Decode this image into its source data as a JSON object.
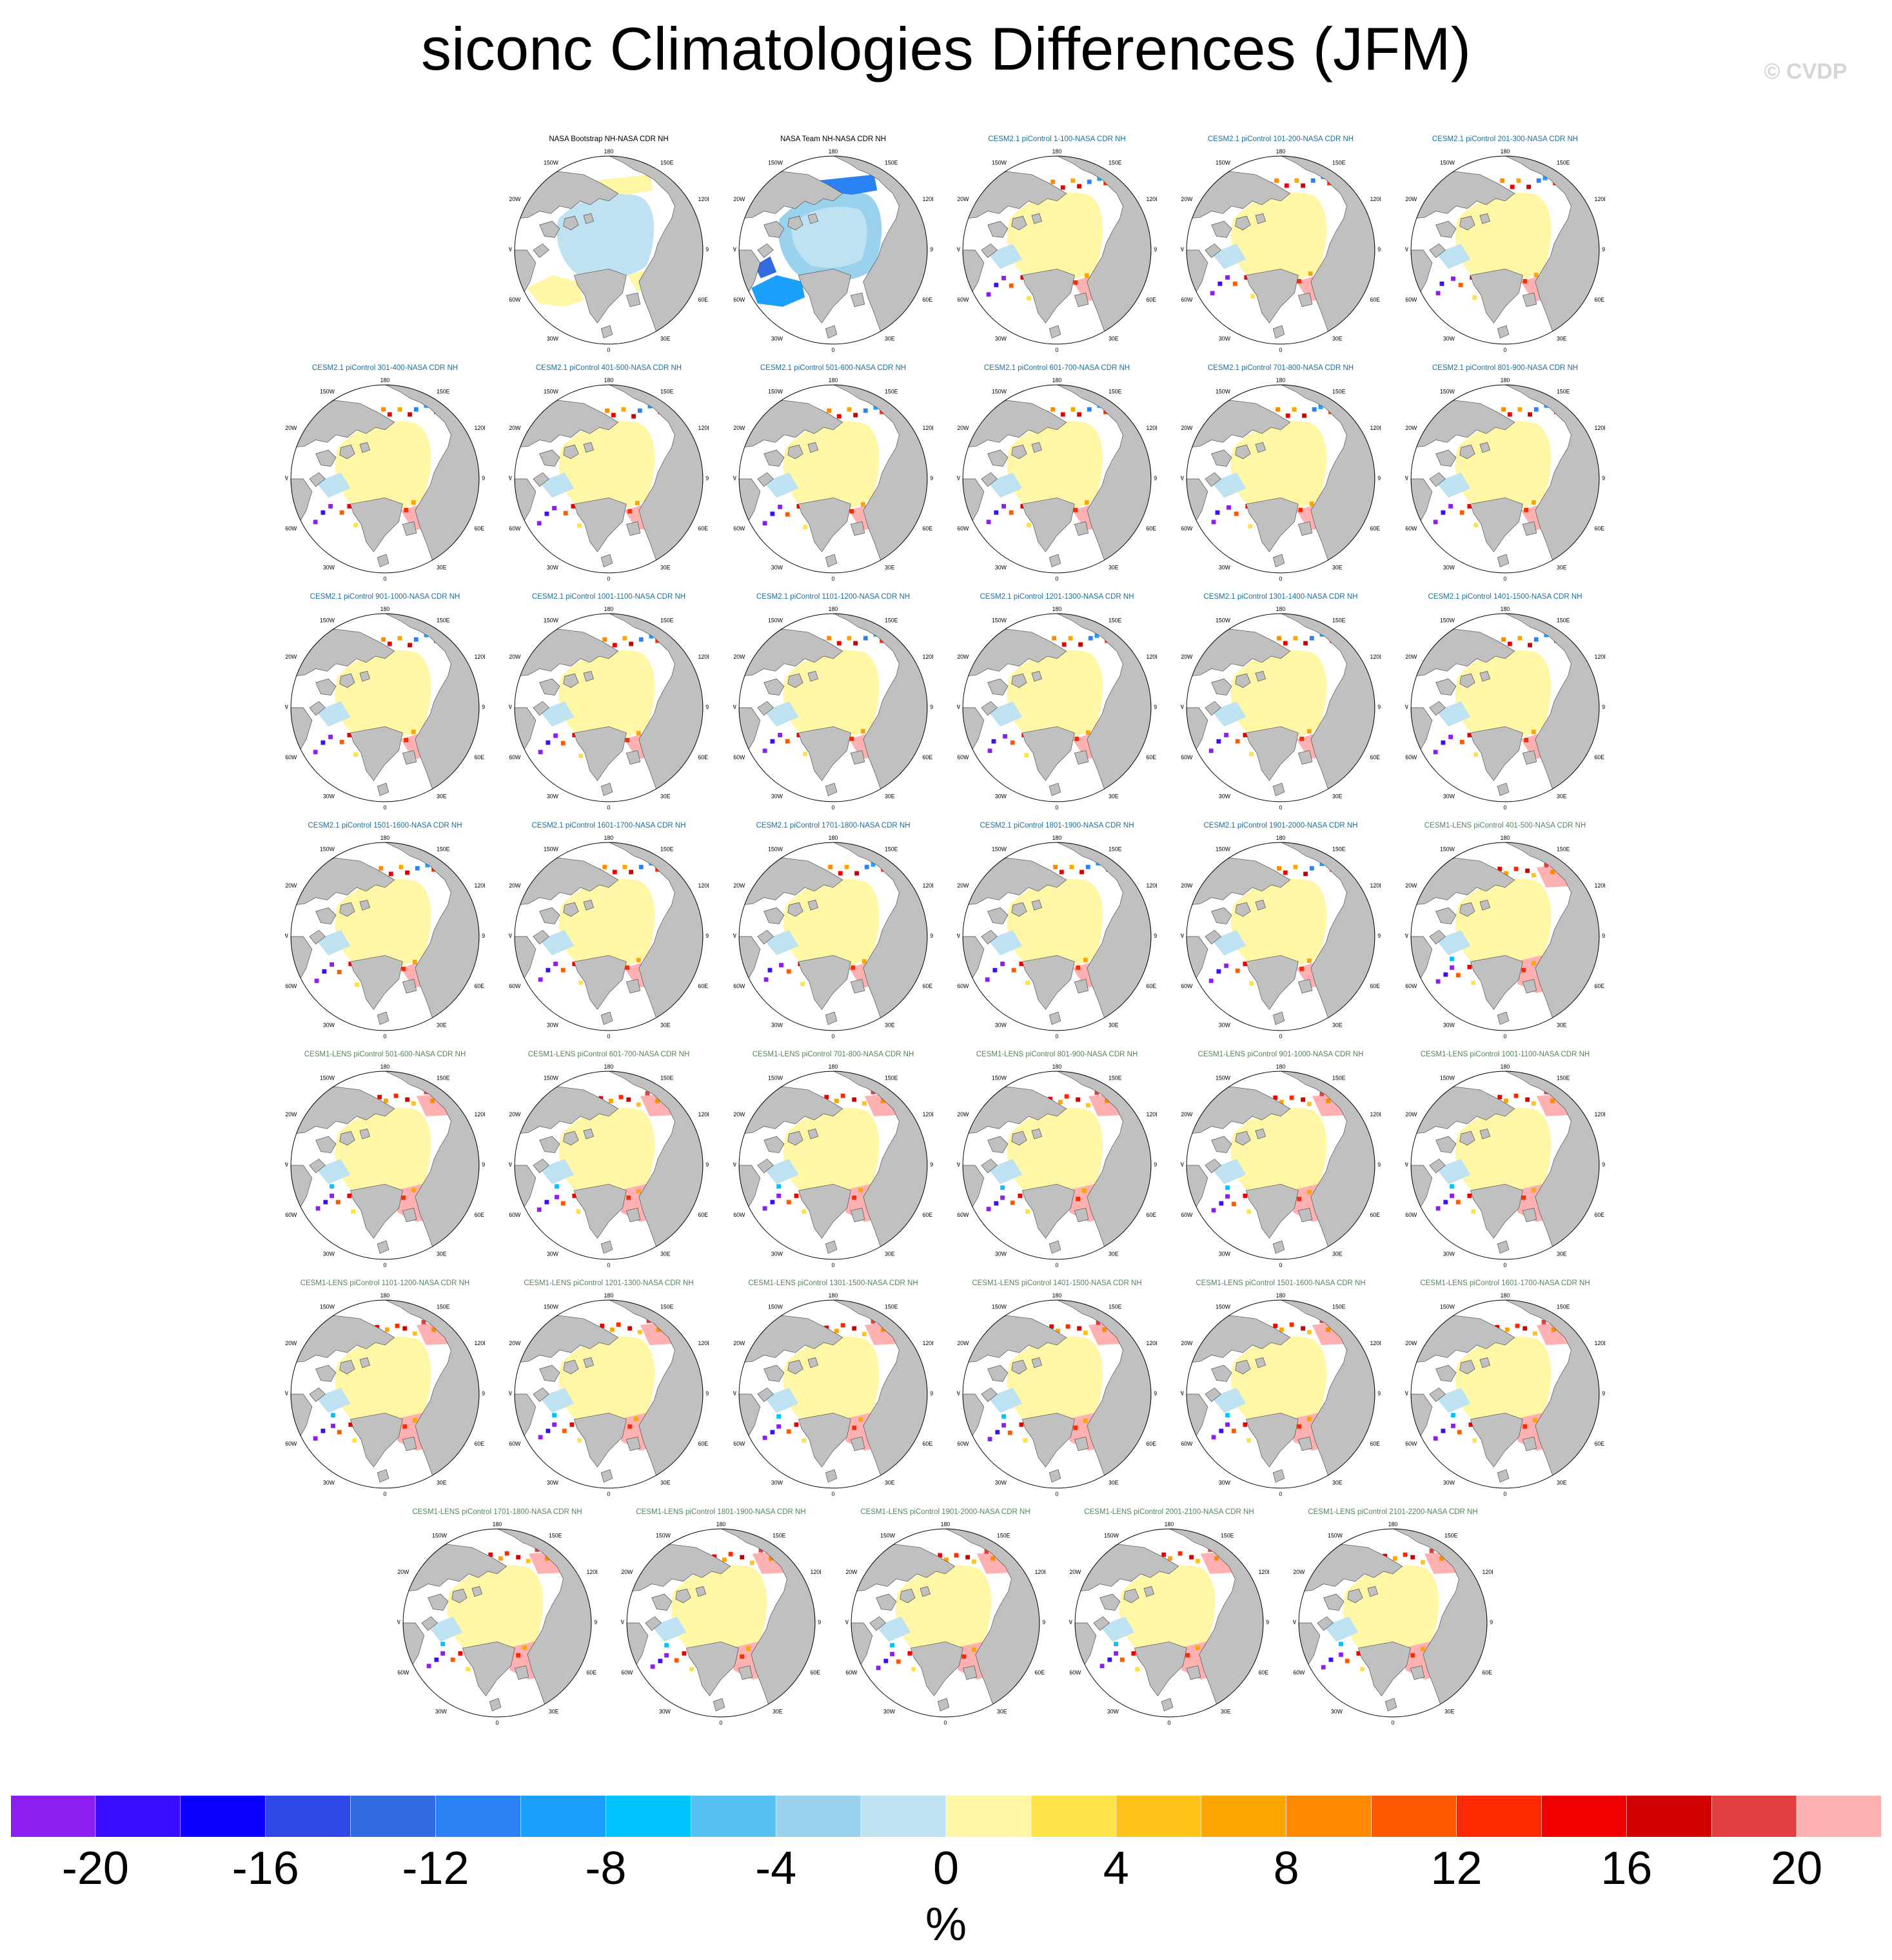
{
  "title": "siconc Climatologies Differences (JFM)",
  "copyright": "© CVDP",
  "units": "%",
  "colors": {
    "ocean_zero": "#ffffff",
    "land": "#c0c0c0",
    "coast": "#4d4d4d",
    "title_obs": "#000000",
    "title_cesm2": "#1b6f9c",
    "title_lens": "#55845b",
    "ice_slight_negative": "#bfe2f3",
    "ice_slight_positive": "#fff6a6",
    "ice_light_positive": "#ffb0b0"
  },
  "panel_style": {
    "NASA Bootstrap NH-NASA CDR NH": "bootstrap",
    "NASA Team NH-NASA CDR NH": "team"
  },
  "panels": [
    "NASA Bootstrap NH-NASA CDR NH",
    "NASA Team NH-NASA CDR NH",
    "CESM2.1 piControl 1-100-NASA CDR NH",
    "CESM2.1 piControl 101-200-NASA CDR NH",
    "CESM2.1 piControl 201-300-NASA CDR NH",
    "CESM2.1 piControl 301-400-NASA CDR NH",
    "CESM2.1 piControl 401-500-NASA CDR NH",
    "CESM2.1 piControl 501-600-NASA CDR NH",
    "CESM2.1 piControl 601-700-NASA CDR NH",
    "CESM2.1 piControl 701-800-NASA CDR NH",
    "CESM2.1 piControl 801-900-NASA CDR NH",
    "CESM2.1 piControl 901-1000-NASA CDR NH",
    "CESM2.1 piControl 1001-1100-NASA CDR NH",
    "CESM2.1 piControl 1101-1200-NASA CDR NH",
    "CESM2.1 piControl 1201-1300-NASA CDR NH",
    "CESM2.1 piControl 1301-1400-NASA CDR NH",
    "CESM2.1 piControl 1401-1500-NASA CDR NH",
    "CESM2.1 piControl 1501-1600-NASA CDR NH",
    "CESM2.1 piControl 1601-1700-NASA CDR NH",
    "CESM2.1 piControl 1701-1800-NASA CDR NH",
    "CESM2.1 piControl 1801-1900-NASA CDR NH",
    "CESM2.1 piControl 1901-2000-NASA CDR NH",
    "CESM1-LENS piControl 401-500-NASA CDR NH",
    "CESM1-LENS piControl 501-600-NASA CDR NH",
    "CESM1-LENS piControl 601-700-NASA CDR NH",
    "CESM1-LENS piControl 701-800-NASA CDR NH",
    "CESM1-LENS piControl 801-900-NASA CDR NH",
    "CESM1-LENS piControl 901-1000-NASA CDR NH",
    "CESM1-LENS piControl 1001-1100-NASA CDR NH",
    "CESM1-LENS piControl 1101-1200-NASA CDR NH",
    "CESM1-LENS piControl 1201-1300-NASA CDR NH",
    "CESM1-LENS piControl 1301-1500-NASA CDR NH",
    "CESM1-LENS piControl 1401-1500-NASA CDR NH",
    "CESM1-LENS piControl 1501-1600-NASA CDR NH",
    "CESM1-LENS piControl 1601-1700-NASA CDR NH",
    "CESM1-LENS piControl 1701-1800-NASA CDR NH",
    "CESM1-LENS piControl 1801-1900-NASA CDR NH",
    "CESM1-LENS piControl 1901-2000-NASA CDR NH",
    "CESM1-LENS piControl 2001-2100-NASA CDR NH",
    "CESM1-LENS piControl 2101-2200-NASA CDR NH"
  ],
  "map_labels": {
    "top": "180",
    "upper_left": "150W",
    "upper_right": "150E",
    "mid_left_upper": "120W",
    "mid_right_upper": "120E",
    "left": "90W",
    "right": "90E",
    "mid_left_lower": "60W",
    "mid_right_lower": "60E",
    "lower_left": "30W",
    "lower_right": "30E",
    "bottom": "0"
  },
  "colorbar": {
    "colors": [
      "#8b1ff0",
      "#3a0dff",
      "#0b00ff",
      "#2e49e6",
      "#346ae0",
      "#2a82f5",
      "#1ca0fc",
      "#00c3ff",
      "#59c1f1",
      "#9ad2ee",
      "#bfe2f3",
      "#fff6a6",
      "#ffe24a",
      "#ffc31c",
      "#ffa500",
      "#ff8a00",
      "#ff5a00",
      "#ff2a00",
      "#f00000",
      "#d00000",
      "#e04040",
      "#ffb0b0"
    ],
    "tick_labels": [
      "-20",
      "-16",
      "-12",
      "-8",
      "-4",
      "0",
      "4",
      "8",
      "12",
      "16",
      "20"
    ],
    "tick_boundaries": [
      1,
      3,
      5,
      7,
      9,
      11,
      13,
      15,
      17,
      19,
      21
    ]
  }
}
